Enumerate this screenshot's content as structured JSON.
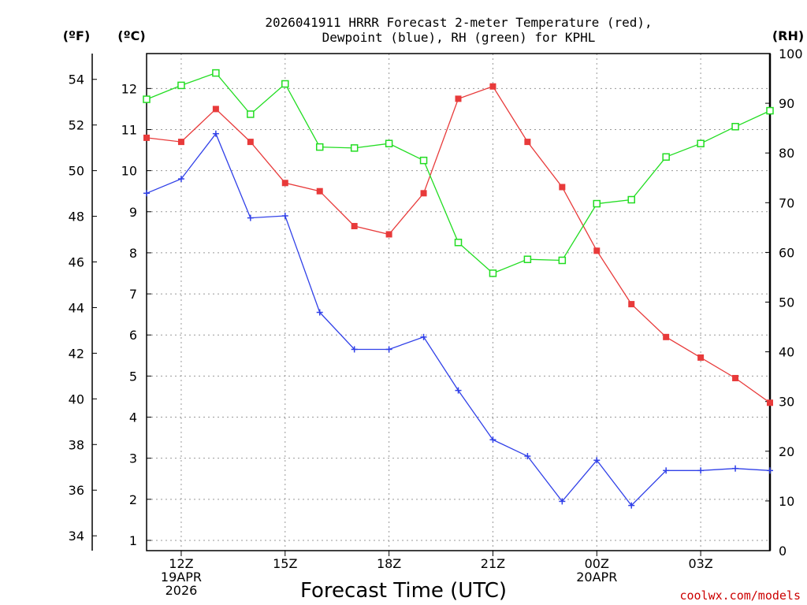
{
  "chart_data": {
    "type": "line",
    "title_line1": "2026041911 HRRR Forecast 2-meter Temperature (red),",
    "title_line2": "Dewpoint (blue), RH (green) for KPHL",
    "xlabel": "Forecast Time (UTC)",
    "credit": "coolwx.com/models",
    "units": {
      "f": "(ºF)",
      "c": "(ºC)",
      "rh": "(RH)"
    },
    "x_hours": [
      11,
      12,
      13,
      14,
      15,
      16,
      17,
      18,
      19,
      20,
      21,
      22,
      23,
      24,
      25,
      26,
      27,
      28,
      29
    ],
    "x_range": [
      11,
      29
    ],
    "c_range": [
      0.75,
      12.85
    ],
    "f_ticks": [
      34,
      36,
      38,
      40,
      42,
      44,
      46,
      48,
      50,
      52,
      54
    ],
    "c_ticks": [
      1,
      2,
      3,
      4,
      5,
      6,
      7,
      8,
      9,
      10,
      11,
      12
    ],
    "rh_range": [
      0,
      100
    ],
    "rh_ticks": [
      0,
      10,
      20,
      30,
      40,
      50,
      60,
      70,
      80,
      90,
      100
    ],
    "x_ticks": [
      {
        "hour": 12,
        "lines": [
          "12Z",
          "19APR",
          "2026"
        ]
      },
      {
        "hour": 15,
        "lines": [
          "15Z"
        ]
      },
      {
        "hour": 18,
        "lines": [
          "18Z"
        ]
      },
      {
        "hour": 21,
        "lines": [
          "21Z"
        ]
      },
      {
        "hour": 24,
        "lines": [
          "00Z",
          "20APR"
        ]
      },
      {
        "hour": 27,
        "lines": [
          "03Z"
        ]
      }
    ],
    "series": [
      {
        "name": "Temperature",
        "unit": "C",
        "color": "#e83a3a",
        "marker": "filled-square",
        "values": [
          10.8,
          10.7,
          11.5,
          10.7,
          9.7,
          9.5,
          8.65,
          8.45,
          9.45,
          11.75,
          12.05,
          10.7,
          9.6,
          8.05,
          6.75,
          5.95,
          5.45,
          4.95,
          4.35
        ]
      },
      {
        "name": "Dewpoint",
        "unit": "C",
        "color": "#3040e8",
        "marker": "plus",
        "values": [
          9.45,
          9.8,
          10.9,
          8.85,
          8.9,
          6.55,
          5.65,
          5.65,
          5.95,
          4.65,
          3.45,
          3.05,
          1.95,
          2.95,
          1.85,
          2.7,
          2.7,
          2.75,
          2.7
        ]
      },
      {
        "name": "RH",
        "unit": "%",
        "color": "#22dd22",
        "marker": "open-square",
        "values": [
          90.8,
          93.6,
          96.1,
          87.8,
          93.9,
          81.2,
          81.0,
          81.9,
          78.5,
          62.0,
          55.8,
          58.6,
          58.4,
          69.8,
          70.6,
          79.2,
          81.9,
          85.3,
          88.5
        ]
      }
    ]
  }
}
